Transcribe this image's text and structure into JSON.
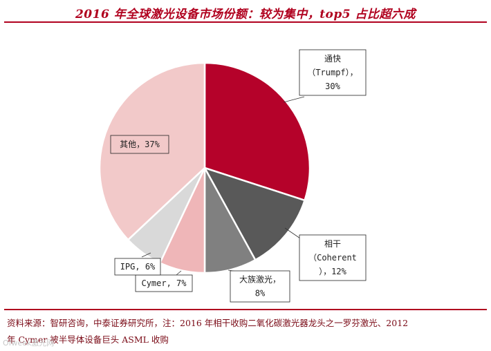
{
  "title": "2016 年全球激光设备市场份额：较为集中，top5 占比超六成",
  "chart_data": {
    "type": "pie",
    "title": "2016 年全球激光设备市场份额：较为集中，top5 占比超六成",
    "slices": [
      {
        "name": "通快（Trumpf）",
        "value": 30,
        "color": "#b5022a",
        "label_lines": [
          "通快",
          "（Trumpf），",
          "30%"
        ]
      },
      {
        "name": "相干（Coherent）",
        "value": 12,
        "color": "#595959",
        "label_lines": [
          "相干",
          "（Coherent",
          "），12%"
        ]
      },
      {
        "name": "大族激光",
        "value": 8,
        "color": "#808080",
        "label_lines": [
          "大族激光，",
          "8%"
        ]
      },
      {
        "name": "Cymer",
        "value": 7,
        "color": "#efb6b8",
        "label_lines": [
          "Cymer, 7%"
        ]
      },
      {
        "name": "IPG",
        "value": 6,
        "color": "#d9d9d9",
        "label_lines": [
          "IPG, 6%"
        ]
      },
      {
        "name": "其他",
        "value": 37,
        "color": "#f2c9c9",
        "label_lines": [
          "其他，37%"
        ]
      }
    ]
  },
  "footnote": {
    "line1": "资料来源：智研咨询，中泰证券研究所，注：2016 年相干收购二氧化碳激光器龙头之一罗芬激光、2012",
    "line2": "年 Cymer 被半导体设备巨头 ASML 收购"
  },
  "watermark": "Ofweek激光网"
}
